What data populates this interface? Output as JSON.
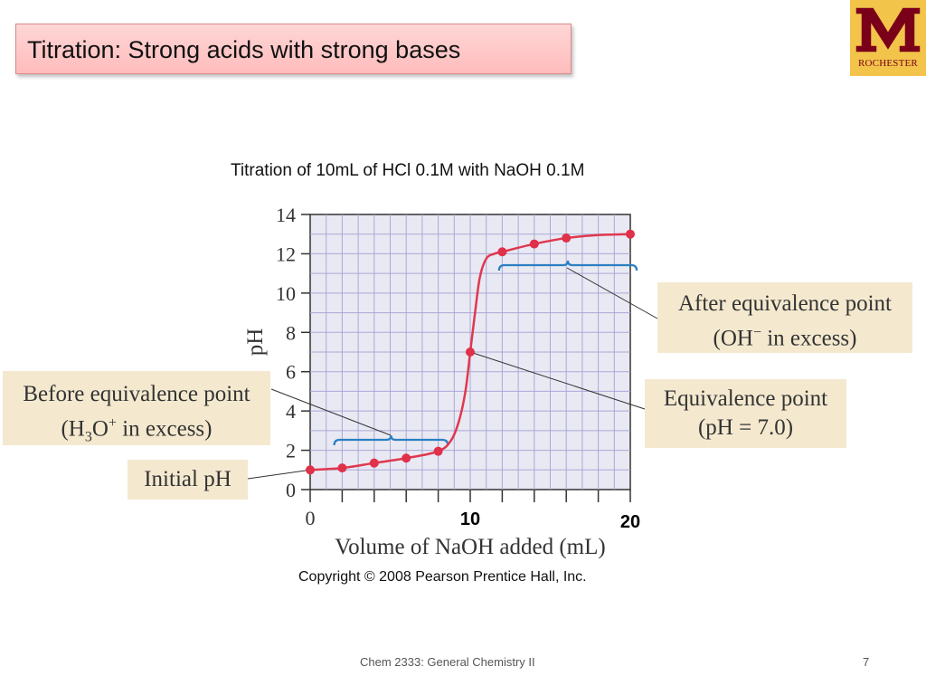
{
  "slide": {
    "title": "Titration: Strong acids with strong bases",
    "logo_text": "ROCHESTER",
    "footer": "Chem 2333: General Chemistry II",
    "page_number": "7"
  },
  "chart_data": {
    "type": "line",
    "title": "Titration of 10mL of HCl 0.1M with NaOH 0.1M",
    "xlabel": "Volume of NaOH added (mL)",
    "ylabel": "pH",
    "xlim": [
      0,
      20
    ],
    "ylim": [
      0,
      14
    ],
    "x_tick_labels": [
      {
        "x": 0,
        "label": "0"
      },
      {
        "x": 10,
        "label": "10"
      },
      {
        "x": 20,
        "label": "20"
      }
    ],
    "y_ticks": [
      0,
      2,
      4,
      6,
      8,
      10,
      12,
      14
    ],
    "grid": true,
    "points": [
      {
        "x": 0,
        "y": 1.0
      },
      {
        "x": 2,
        "y": 1.1
      },
      {
        "x": 4,
        "y": 1.35
      },
      {
        "x": 6,
        "y": 1.6
      },
      {
        "x": 8,
        "y": 1.95
      },
      {
        "x": 10,
        "y": 7.0
      },
      {
        "x": 12,
        "y": 12.1
      },
      {
        "x": 14,
        "y": 12.5
      },
      {
        "x": 16,
        "y": 12.8
      },
      {
        "x": 20,
        "y": 13.0
      }
    ],
    "curve": [
      [
        0,
        1.0
      ],
      [
        2,
        1.1
      ],
      [
        4,
        1.35
      ],
      [
        6,
        1.6
      ],
      [
        8,
        1.95
      ],
      [
        8.8,
        2.5
      ],
      [
        9.3,
        3.5
      ],
      [
        9.7,
        5.0
      ],
      [
        10,
        7.0
      ],
      [
        10.3,
        9.0
      ],
      [
        10.6,
        10.8
      ],
      [
        11.0,
        11.75
      ],
      [
        11.5,
        12.0
      ],
      [
        12,
        12.1
      ],
      [
        14,
        12.5
      ],
      [
        16,
        12.8
      ],
      [
        18,
        12.95
      ],
      [
        20,
        13.0
      ]
    ],
    "copyright": "Copyright © 2008 Pearson Prentice Hall, Inc.",
    "annotations": {
      "before": {
        "line1": "Before equivalence point",
        "line2_prefix": "(H",
        "line2_sub": "3",
        "line2_mid": "O",
        "line2_sup": "+",
        "line2_suffix": " in excess)"
      },
      "after": {
        "line1": "After equivalence point",
        "line2_prefix": "(OH",
        "line2_sup": "−",
        "line2_suffix": " in excess)"
      },
      "equivalence": {
        "line1": "Equivalence point",
        "line2": "(pH = 7.0)"
      },
      "initial": {
        "line1": "Initial pH"
      }
    },
    "brace_ranges": [
      [
        1.5,
        8.6
      ],
      [
        11.8,
        20.4
      ]
    ]
  }
}
